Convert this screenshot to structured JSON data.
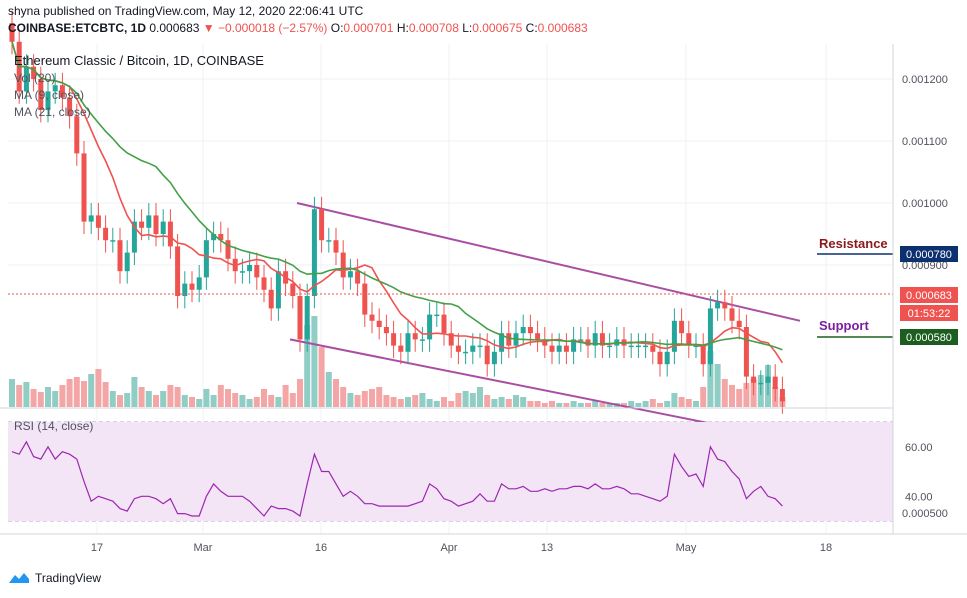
{
  "header": {
    "published": "shyna published on TradingView.com, May 12, 2020 22:06:41 UTC",
    "symbol": "COINBASE:ETCBTC, 1D",
    "last": "0.000683",
    "change": "▼ −0.000018 (−2.57%)",
    "o_label": "O:",
    "o_val": "0.000701",
    "h_label": "H:",
    "h_val": "0.000708",
    "l_label": "L:",
    "l_val": "0.000675",
    "c_label": "C:",
    "c_val": "0.000683"
  },
  "legend": {
    "title": "Ethereum Classic / Bitcoin, 1D, COINBASE",
    "vol": "Vol (20)",
    "ma9": "MA (9, close)",
    "ma21": "MA (21, close)",
    "rsi": "RSI (14, close)"
  },
  "annotations": {
    "resistance": "Resistance",
    "support": "Support"
  },
  "price_tags": {
    "resistance": "0.000780",
    "last": "0.000683",
    "countdown": "01:53:22",
    "support": "0.000580"
  },
  "footer": {
    "brand": "TradingView"
  },
  "colors": {
    "up": "#26a69a",
    "down": "#ef5350",
    "vol_up": "#8fcdc5",
    "vol_down": "#f4a6a6",
    "ma9": "#ef5350",
    "ma21": "#43a047",
    "channel": "#a94fa3",
    "rsi_line": "#9c27b0",
    "rsi_bg": "#f3e5f5",
    "resistance": "#8b1a1a",
    "support": "#7b1fa2",
    "tag_resistance": "#0d3070",
    "tag_support": "#1b5e20",
    "tag_last": "#ef5350"
  },
  "chart_data": {
    "type": "candlestick",
    "title": "Ethereum Classic / Bitcoin, 1D, COINBASE",
    "price_axis": {
      "ticks": [
        0.0012,
        0.0011,
        0.001,
        0.0009,
        0.0005
      ],
      "tick_labels": [
        "0.001200",
        "0.001100",
        "0.001000",
        "0.000900",
        "0.000500"
      ]
    },
    "x_axis": {
      "ticks": [
        "17",
        "Mar",
        "16",
        "Apr",
        "13",
        "May",
        "18"
      ]
    },
    "rsi_axis": {
      "ticks": [
        60,
        40
      ],
      "tick_labels": [
        "60.00",
        "40.00"
      ],
      "bands": [
        70,
        30
      ]
    },
    "closes": [
      0.00126,
      0.00118,
      0.00122,
      0.0012,
      0.00115,
      0.00118,
      0.00119,
      0.00117,
      0.00114,
      0.00108,
      0.00097,
      0.00098,
      0.00096,
      0.00094,
      0.00094,
      0.00089,
      0.00092,
      0.00097,
      0.00096,
      0.00098,
      0.00095,
      0.00097,
      0.00093,
      0.00085,
      0.00087,
      0.00086,
      0.00088,
      0.00094,
      0.00095,
      0.00094,
      0.00091,
      0.00089,
      0.00089,
      0.0009,
      0.00088,
      0.00086,
      0.00083,
      0.00089,
      0.00087,
      0.00085,
      0.00078,
      0.00085,
      0.00099,
      0.00094,
      0.00094,
      0.00092,
      0.00088,
      0.00089,
      0.00087,
      0.00082,
      0.00081,
      0.0008,
      0.00079,
      0.00077,
      0.00076,
      0.00079,
      0.00078,
      0.00078,
      0.00082,
      0.00082,
      0.00079,
      0.00077,
      0.00076,
      0.00076,
      0.00077,
      0.00077,
      0.00074,
      0.00076,
      0.00079,
      0.00077,
      0.00079,
      0.0008,
      0.00079,
      0.00078,
      0.00077,
      0.00076,
      0.00077,
      0.00076,
      0.00078,
      0.00078,
      0.00077,
      0.00079,
      0.00077,
      0.00077,
      0.00078,
      0.00077,
      0.00077,
      0.00077,
      0.00077,
      0.00076,
      0.00074,
      0.00076,
      0.00081,
      0.00079,
      0.00077,
      0.00077,
      0.00074,
      0.00083,
      0.00084,
      0.00083,
      0.00081,
      0.0008,
      0.00072,
      0.00071,
      0.00071,
      0.00072,
      0.0007,
      0.00068
    ],
    "volumes": [
      28,
      22,
      25,
      18,
      15,
      20,
      16,
      22,
      28,
      30,
      26,
      33,
      38,
      25,
      16,
      12,
      14,
      30,
      20,
      16,
      12,
      16,
      22,
      20,
      12,
      10,
      8,
      18,
      12,
      22,
      18,
      14,
      12,
      8,
      10,
      18,
      12,
      10,
      22,
      14,
      28,
      82,
      91,
      60,
      35,
      28,
      20,
      14,
      12,
      16,
      18,
      20,
      12,
      10,
      8,
      10,
      12,
      14,
      8,
      6,
      10,
      6,
      14,
      16,
      14,
      20,
      12,
      8,
      10,
      8,
      12,
      10,
      6,
      6,
      4,
      6,
      4,
      4,
      6,
      4,
      4,
      6,
      4,
      4,
      4,
      4,
      6,
      4,
      6,
      8,
      4,
      6,
      14,
      10,
      8,
      6,
      20,
      56,
      43,
      28,
      22,
      18,
      24,
      28,
      32,
      42,
      20,
      10
    ],
    "rsi": [
      58,
      57,
      62,
      56,
      55,
      60,
      55,
      58,
      57,
      55,
      46,
      38,
      40,
      39,
      38,
      35,
      34,
      39,
      40,
      40,
      39,
      37,
      39,
      33,
      33,
      32,
      32,
      40,
      45,
      42,
      40,
      40,
      40,
      38,
      35,
      32,
      36,
      35,
      35,
      34,
      32,
      45,
      57,
      50,
      50,
      45,
      40,
      42,
      40,
      37,
      37,
      36,
      36,
      36,
      36,
      36,
      37,
      38,
      45,
      43,
      39,
      38,
      36,
      37,
      38,
      41,
      38,
      38,
      45,
      43,
      43,
      44,
      42,
      42,
      43,
      42,
      43,
      43,
      44,
      44,
      43,
      45,
      43,
      43,
      44,
      43,
      41,
      41,
      40,
      39,
      38,
      40,
      57,
      52,
      48,
      49,
      44,
      60,
      55,
      54,
      50,
      47,
      39,
      42,
      44,
      40,
      39,
      36
    ],
    "ma9_extent": [
      "0.00124",
      "0.00073"
    ],
    "ma21_extent": [
      "0.00122",
      "0.00076"
    ],
    "channel": {
      "upper": [
        0.001,
        0.00081
      ],
      "lower": [
        0.00078,
        0.00062
      ]
    }
  }
}
